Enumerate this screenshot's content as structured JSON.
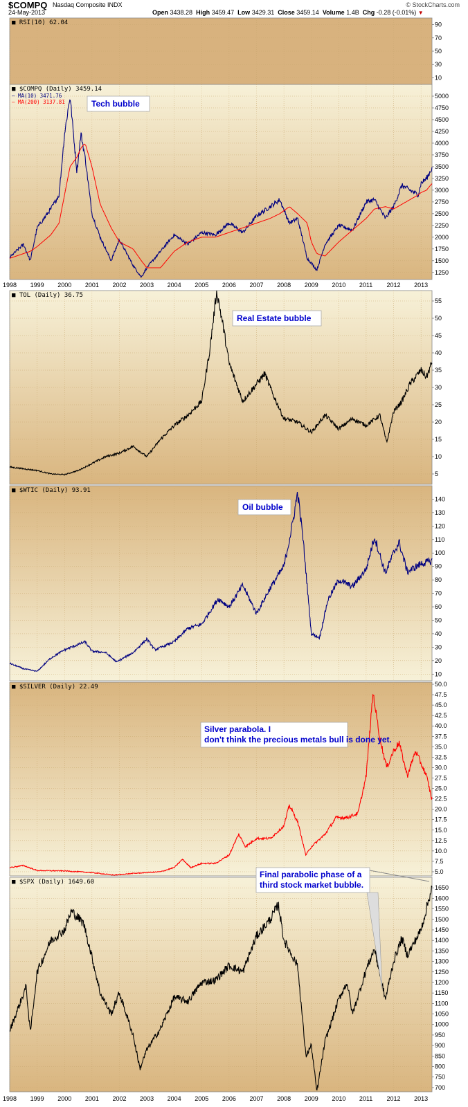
{
  "header": {
    "symbol": "$COMPQ",
    "name": "Nasdaq Composite INDX",
    "date": "24-May-2013",
    "open_label": "Open",
    "open": "3438.28",
    "high_label": "High",
    "high": "3459.47",
    "low_label": "Low",
    "low": "3429.31",
    "close_label": "Close",
    "close": "3459.14",
    "volume_label": "Volume",
    "volume": "1.4B",
    "chg_label": "Chg",
    "chg": "-0.28 (-0.01%)",
    "source": "© StockCharts.com"
  },
  "colors": {
    "panel_top": "#f7f1d8",
    "panel_bottom": "#d9b57f",
    "rsi_panel": "#d8b27e",
    "compq_price": "#000080",
    "ma10": "#000080",
    "ma200": "#ff0000",
    "tol": "#000000",
    "wtic": "#000080",
    "silver": "#ff0000",
    "spx": "#000000",
    "annotation_text": "#0000cc"
  },
  "chart_data": [
    {
      "type": "line",
      "panel": "rsi",
      "title": "RSI(10) 62.04",
      "y_ticks": [
        "10",
        "30",
        "50",
        "70",
        "90"
      ],
      "ylim": [
        0,
        100
      ],
      "series": [
        {
          "name": "RSI(10)",
          "last": 62.04
        }
      ]
    },
    {
      "type": "line",
      "panel": "compq",
      "title": "$COMPQ (Daily) 3459.14",
      "legend": [
        {
          "label": "MA(10) 3471.76",
          "color": "#000080"
        },
        {
          "label": "MA(200) 3137.81",
          "color": "#ff0000"
        }
      ],
      "annotation": "Tech bubble",
      "y_ticks": [
        "1250",
        "1500",
        "1750",
        "2000",
        "2250",
        "2500",
        "2750",
        "3000",
        "3250",
        "3500",
        "3750",
        "4000",
        "4250",
        "4500",
        "4750",
        "5000"
      ],
      "ylim": [
        1100,
        5250
      ],
      "x": [
        1998.0,
        1998.5,
        1998.75,
        1999.0,
        1999.5,
        1999.8,
        2000.0,
        2000.2,
        2000.45,
        2000.6,
        2000.75,
        2001.0,
        2001.3,
        2001.7,
        2002.0,
        2002.5,
        2002.8,
        2003.0,
        2003.5,
        2004.0,
        2004.5,
        2005.0,
        2005.5,
        2006.0,
        2006.5,
        2007.0,
        2007.5,
        2007.85,
        2008.2,
        2008.5,
        2008.85,
        2009.0,
        2009.2,
        2009.5,
        2010.0,
        2010.5,
        2011.0,
        2011.3,
        2011.7,
        2012.0,
        2012.3,
        2012.9,
        2013.0,
        2013.2,
        2013.39
      ],
      "series": [
        {
          "name": "$COMPQ",
          "values": [
            1570,
            1850,
            1500,
            2200,
            2600,
            2900,
            4200,
            5000,
            3400,
            4200,
            3700,
            2500,
            2000,
            1500,
            1950,
            1400,
            1150,
            1350,
            1700,
            2050,
            1850,
            2100,
            2050,
            2300,
            2100,
            2450,
            2650,
            2800,
            2300,
            2400,
            1550,
            1450,
            1300,
            1850,
            2250,
            2150,
            2750,
            2800,
            2400,
            2650,
            3100,
            2900,
            3150,
            3250,
            3459
          ]
        },
        {
          "name": "MA(200)",
          "values": [
            1550,
            1650,
            1700,
            1800,
            2050,
            2300,
            2900,
            3500,
            3700,
            3900,
            4000,
            3500,
            2700,
            2200,
            1900,
            1750,
            1500,
            1350,
            1350,
            1700,
            1900,
            2000,
            2000,
            2100,
            2200,
            2300,
            2400,
            2500,
            2650,
            2500,
            2300,
            1900,
            1650,
            1600,
            1900,
            2150,
            2400,
            2600,
            2650,
            2600,
            2700,
            2900,
            2950,
            3000,
            3138
          ]
        }
      ]
    },
    {
      "type": "line",
      "panel": "tol",
      "title": "TOL (Daily) 36.75",
      "annotation": "Real Estate bubble",
      "y_ticks": [
        "5",
        "10",
        "15",
        "20",
        "25",
        "30",
        "35",
        "40",
        "45",
        "50",
        "55"
      ],
      "ylim": [
        2,
        58
      ],
      "x": [
        1998.0,
        1998.5,
        1999.0,
        1999.5,
        2000.0,
        2000.5,
        2001.0,
        2001.5,
        2002.0,
        2002.5,
        2003.0,
        2003.5,
        2004.0,
        2004.5,
        2005.0,
        2005.3,
        2005.55,
        2005.8,
        2006.0,
        2006.5,
        2007.0,
        2007.3,
        2007.6,
        2008.0,
        2008.5,
        2009.0,
        2009.5,
        2010.0,
        2010.5,
        2011.0,
        2011.5,
        2011.75,
        2012.0,
        2012.3,
        2012.6,
        2013.0,
        2013.2,
        2013.39
      ],
      "series": [
        {
          "name": "TOL",
          "values": [
            7,
            6.5,
            6,
            5,
            4.8,
            6,
            8,
            10,
            11,
            13,
            10,
            15,
            19,
            22,
            26,
            41,
            58,
            47,
            37,
            26,
            31,
            34,
            28,
            21,
            20,
            17,
            22,
            18,
            21,
            19,
            22,
            14,
            23,
            26,
            31,
            35,
            33,
            37
          ]
        }
      ]
    },
    {
      "type": "line",
      "panel": "wtic",
      "title": "$WTIC (Daily) 93.91",
      "annotation": "Oil bubble",
      "y_ticks": [
        "10",
        "20",
        "30",
        "40",
        "50",
        "60",
        "70",
        "80",
        "90",
        "100",
        "110",
        "120",
        "130",
        "140"
      ],
      "ylim": [
        5,
        150
      ],
      "x": [
        1998.0,
        1998.5,
        1999.0,
        1999.5,
        2000.0,
        2000.5,
        2000.75,
        2001.0,
        2001.5,
        2001.9,
        2002.5,
        2003.0,
        2003.3,
        2004.0,
        2004.5,
        2005.0,
        2005.6,
        2006.0,
        2006.5,
        2007.0,
        2007.5,
        2008.0,
        2008.3,
        2008.5,
        2008.7,
        2009.0,
        2009.3,
        2009.6,
        2010.0,
        2010.5,
        2011.0,
        2011.3,
        2011.7,
        2012.0,
        2012.2,
        2012.5,
        2013.0,
        2013.39
      ],
      "series": [
        {
          "name": "$WTIC",
          "values": [
            18,
            14,
            12,
            22,
            28,
            32,
            34,
            27,
            26,
            19,
            26,
            36,
            28,
            34,
            44,
            47,
            66,
            60,
            76,
            55,
            74,
            90,
            120,
            145,
            110,
            40,
            37,
            65,
            80,
            75,
            88,
            112,
            85,
            100,
            108,
            86,
            92,
            94
          ]
        }
      ]
    },
    {
      "type": "line",
      "panel": "silver",
      "title": "$SILVER (Daily) 22.49",
      "annotation": "Silver parabola.  I don't think the precious metals bull is done yet.",
      "y_ticks": [
        "5.0",
        "7.5",
        "10.0",
        "12.5",
        "15.0",
        "17.5",
        "20.0",
        "22.5",
        "25.0",
        "27.5",
        "30.0",
        "32.5",
        "35.0",
        "37.5",
        "40.0",
        "42.5",
        "45.0",
        "47.5",
        "50.0"
      ],
      "ylim": [
        4,
        50.5
      ],
      "x": [
        1998.0,
        1998.5,
        1999.0,
        2000.0,
        2001.0,
        2001.8,
        2002.5,
        2003.0,
        2003.5,
        2004.0,
        2004.3,
        2004.6,
        2005.0,
        2005.5,
        2006.0,
        2006.35,
        2006.6,
        2007.0,
        2007.5,
        2008.0,
        2008.2,
        2008.5,
        2008.8,
        2009.0,
        2009.5,
        2009.9,
        2010.3,
        2010.7,
        2011.0,
        2011.25,
        2011.5,
        2011.75,
        2012.0,
        2012.2,
        2012.5,
        2012.8,
        2013.0,
        2013.2,
        2013.39
      ],
      "series": [
        {
          "name": "$SILVER",
          "values": [
            6,
            6.5,
            5.3,
            5.2,
            4.8,
            4.2,
            4.6,
            4.8,
            5,
            6,
            8,
            6,
            7,
            7,
            9,
            14,
            11,
            13,
            13,
            16,
            21,
            17,
            9,
            11,
            14,
            18,
            18,
            19,
            28,
            48,
            37,
            30,
            34,
            36,
            28,
            34,
            31,
            28,
            22.5
          ]
        }
      ]
    },
    {
      "type": "line",
      "panel": "spx",
      "title": "$SPX (Daily) 1649.60",
      "annotation": "Final parabolic phase of a third stock market bubble.",
      "y_ticks": [
        "700",
        "750",
        "800",
        "850",
        "900",
        "950",
        "1000",
        "1050",
        "1100",
        "1150",
        "1200",
        "1250",
        "1300",
        "1350",
        "1400",
        "1450",
        "1500",
        "1550",
        "1600",
        "1650"
      ],
      "ylim": [
        680,
        1700
      ],
      "x": [
        1998.0,
        1998.6,
        1998.75,
        1999.0,
        1999.5,
        2000.0,
        2000.25,
        2000.7,
        2001.0,
        2001.3,
        2001.7,
        2002.0,
        2002.5,
        2002.75,
        2003.0,
        2003.5,
        2004.0,
        2004.5,
        2005.0,
        2005.5,
        2006.0,
        2006.5,
        2007.0,
        2007.5,
        2007.8,
        2008.0,
        2008.5,
        2008.8,
        2009.0,
        2009.2,
        2009.5,
        2010.0,
        2010.3,
        2010.5,
        2011.0,
        2011.3,
        2011.7,
        2012.0,
        2012.3,
        2012.5,
        2013.0,
        2013.39
      ],
      "series": [
        {
          "name": "$SPX",
          "values": [
            970,
            1180,
            960,
            1250,
            1400,
            1450,
            1540,
            1480,
            1320,
            1150,
            1050,
            1150,
            950,
            790,
            880,
            980,
            1130,
            1110,
            1200,
            1210,
            1280,
            1250,
            1420,
            1500,
            1570,
            1400,
            1280,
            850,
            900,
            680,
            920,
            1120,
            1200,
            1050,
            1260,
            1360,
            1120,
            1300,
            1410,
            1330,
            1450,
            1650
          ]
        }
      ]
    }
  ],
  "x_axis_labels": [
    "1998",
    "1999",
    "2000",
    "2001",
    "2002",
    "2003",
    "2004",
    "2005",
    "2006",
    "2007",
    "2008",
    "2009",
    "2010",
    "2011",
    "2012",
    "2013"
  ]
}
